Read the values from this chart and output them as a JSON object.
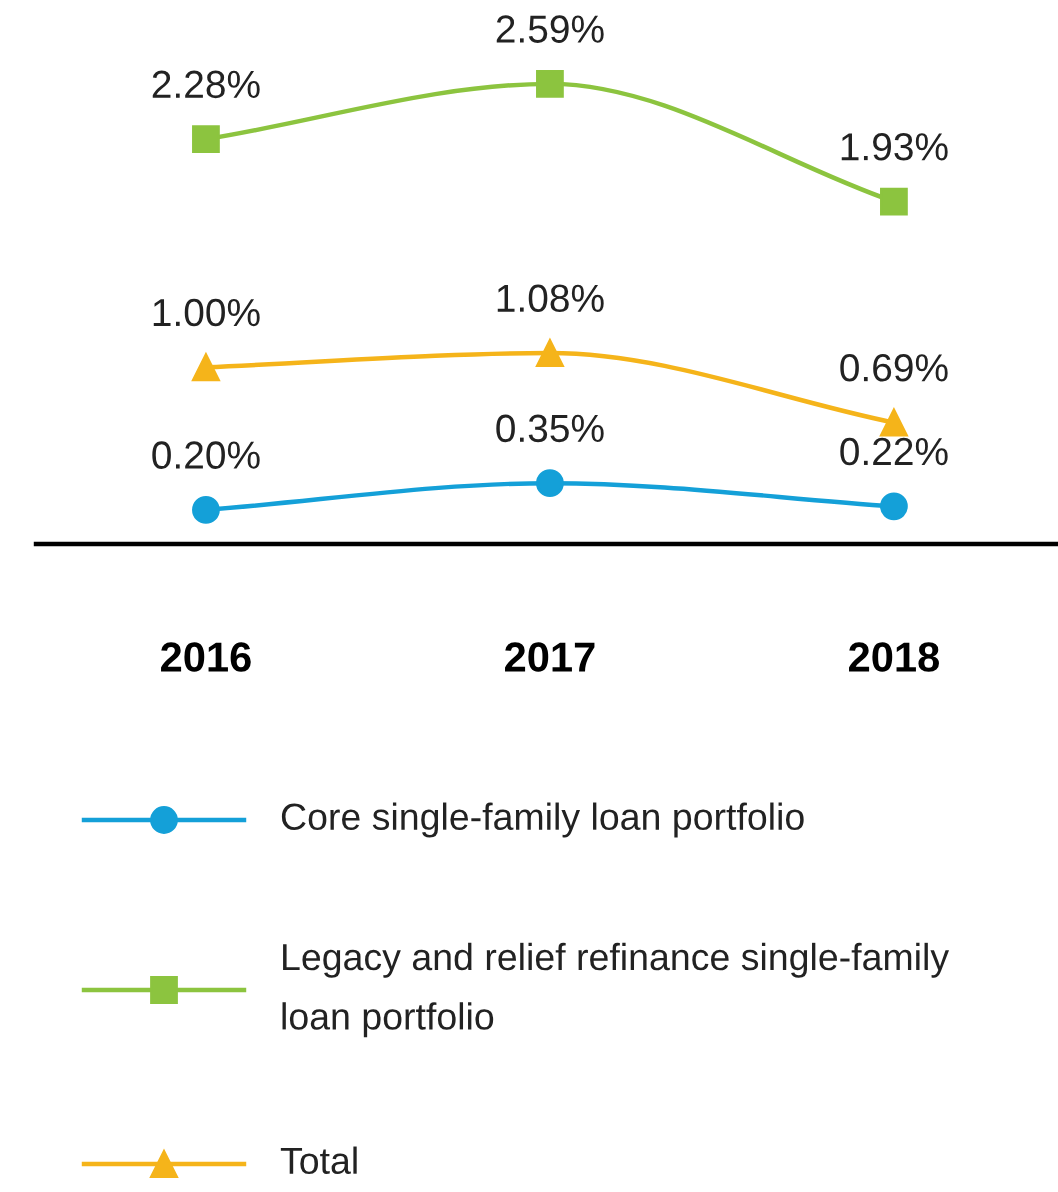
{
  "chart_data": {
    "type": "line",
    "categories": [
      "2016",
      "2017",
      "2018"
    ],
    "series": [
      {
        "name": "Core single-family loan portfolio",
        "color": "#14a0d8",
        "marker": "circle",
        "values": [
          0.2,
          0.35,
          0.22
        ],
        "value_labels": [
          "0.20%",
          "0.35%",
          "0.22%"
        ]
      },
      {
        "name": "Legacy and relief refinance single-family loan portfolio",
        "color": "#8cc43f",
        "marker": "square",
        "values": [
          2.28,
          2.59,
          1.93
        ],
        "value_labels": [
          "2.28%",
          "2.59%",
          "1.93%"
        ]
      },
      {
        "name": "Total",
        "color": "#f5b41a",
        "marker": "triangle",
        "values": [
          1.0,
          1.08,
          0.69
        ],
        "value_labels": [
          "1.00%",
          "1.08%",
          "0.69%"
        ]
      }
    ],
    "tick_labels": "x",
    "grid": false,
    "legend": "bottom",
    "line_style": "solid"
  }
}
